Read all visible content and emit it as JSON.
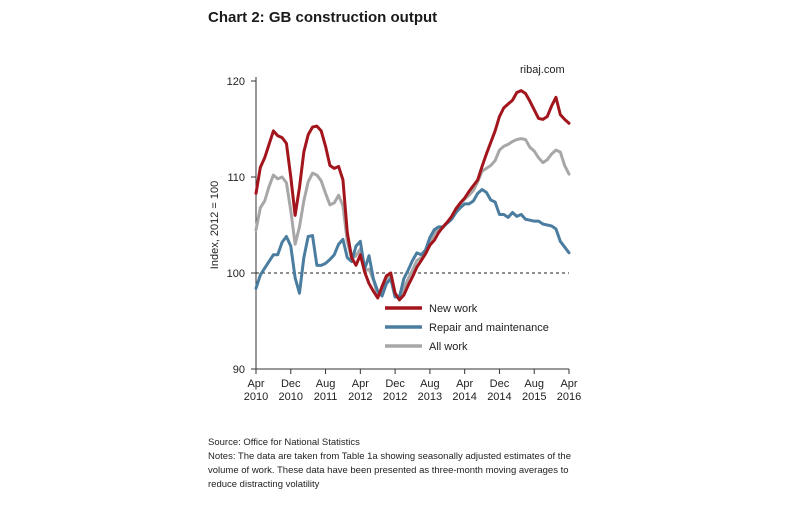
{
  "title": "Chart 2: GB construction output",
  "site_label": "ribaj.com",
  "source": "Source: Office for National Statistics",
  "notes": "Notes: The data are taken from Table 1a showing seasonally adjusted estimates of the volume of work. These data have been presented as three-month moving averages to reduce distracting volatility",
  "chart_data": {
    "type": "line",
    "title": "Chart 2: GB construction output",
    "ylabel": "Index, 2012 = 100",
    "xlabel": "",
    "ylim": [
      90,
      120
    ],
    "yticks": [
      90,
      100,
      110,
      120
    ],
    "reference_line": {
      "y": 100,
      "style": "dashed"
    },
    "grid": false,
    "legend_position": "center-bottom",
    "x_range": [
      "2010-04",
      "2016-04"
    ],
    "x_ticks": [
      {
        "x": "2010-04",
        "line1": "Apr",
        "line2": "2010"
      },
      {
        "x": "2010-12",
        "line1": "Dec",
        "line2": "2010"
      },
      {
        "x": "2011-08",
        "line1": "Aug",
        "line2": "2011"
      },
      {
        "x": "2012-04",
        "line1": "Apr",
        "line2": "2012"
      },
      {
        "x": "2012-12",
        "line1": "Dec",
        "line2": "2012"
      },
      {
        "x": "2013-08",
        "line1": "Aug",
        "line2": "2013"
      },
      {
        "x": "2014-04",
        "line1": "Apr",
        "line2": "2014"
      },
      {
        "x": "2014-12",
        "line1": "Dec",
        "line2": "2014"
      },
      {
        "x": "2015-08",
        "line1": "Aug",
        "line2": "2015"
      },
      {
        "x": "2016-04",
        "line1": "Apr",
        "line2": "2016"
      }
    ],
    "x": [
      "2010-04",
      "2010-05",
      "2010-06",
      "2010-07",
      "2010-08",
      "2010-09",
      "2010-10",
      "2010-11",
      "2010-12",
      "2011-01",
      "2011-02",
      "2011-03",
      "2011-04",
      "2011-05",
      "2011-06",
      "2011-07",
      "2011-08",
      "2011-09",
      "2011-10",
      "2011-11",
      "2011-12",
      "2012-01",
      "2012-02",
      "2012-03",
      "2012-04",
      "2012-05",
      "2012-06",
      "2012-07",
      "2012-08",
      "2012-09",
      "2012-10",
      "2012-11",
      "2012-12",
      "2013-01",
      "2013-02",
      "2013-03",
      "2013-04",
      "2013-05",
      "2013-06",
      "2013-07",
      "2013-08",
      "2013-09",
      "2013-10",
      "2013-11",
      "2013-12",
      "2014-01",
      "2014-02",
      "2014-03",
      "2014-04",
      "2014-05",
      "2014-06",
      "2014-07",
      "2014-08",
      "2014-09",
      "2014-10",
      "2014-11",
      "2014-12",
      "2015-01",
      "2015-02",
      "2015-03",
      "2015-04",
      "2015-05",
      "2015-06",
      "2015-07",
      "2015-08",
      "2015-09",
      "2015-10",
      "2015-11",
      "2015-12",
      "2016-01",
      "2016-02",
      "2016-03",
      "2016-04"
    ],
    "series": [
      {
        "name": "New work",
        "color": "#a3151c",
        "values": [
          108.3,
          111.0,
          112.0,
          113.4,
          114.8,
          114.3,
          114.1,
          113.5,
          110.0,
          106.0,
          108.9,
          112.6,
          114.4,
          115.2,
          115.3,
          114.8,
          113.2,
          111.2,
          110.9,
          111.1,
          109.7,
          104.2,
          101.6,
          100.8,
          101.9,
          100.1,
          98.9,
          98.1,
          97.4,
          98.6,
          99.7,
          100.0,
          97.9,
          97.2,
          97.7,
          98.7,
          99.6,
          100.6,
          101.3,
          102.0,
          102.9,
          103.4,
          104.2,
          104.8,
          105.3,
          105.9,
          106.7,
          107.3,
          107.8,
          108.5,
          109.1,
          109.7,
          111.1,
          112.4,
          113.6,
          114.8,
          116.3,
          117.2,
          117.6,
          118.0,
          118.8,
          119.0,
          118.7,
          117.9,
          117.0,
          116.1,
          116.0,
          116.3,
          117.4,
          118.3,
          116.5,
          116.0,
          115.6
        ]
      },
      {
        "name": "Repair and maintenance",
        "color": "#4a7d9f",
        "values": [
          98.4,
          99.8,
          100.5,
          101.2,
          101.9,
          101.9,
          103.2,
          103.8,
          102.8,
          99.5,
          97.9,
          101.6,
          103.8,
          103.9,
          100.8,
          100.8,
          101.0,
          101.4,
          101.9,
          103.0,
          103.5,
          101.6,
          101.2,
          102.8,
          103.3,
          100.4,
          101.8,
          99.4,
          98.1,
          97.6,
          98.9,
          99.4,
          97.5,
          97.5,
          99.4,
          100.3,
          101.3,
          102.1,
          101.9,
          102.4,
          103.7,
          104.5,
          104.8,
          104.8,
          105.2,
          105.6,
          106.3,
          106.8,
          107.2,
          107.2,
          107.5,
          108.3,
          108.7,
          108.4,
          107.6,
          107.4,
          106.1,
          106.1,
          105.8,
          106.3,
          105.9,
          106.1,
          105.6,
          105.5,
          105.4,
          105.4,
          105.1,
          105.0,
          104.9,
          104.6,
          103.3,
          102.7,
          102.1
        ]
      },
      {
        "name": "All work",
        "color": "#a7a7a7",
        "values": [
          104.5,
          106.8,
          107.5,
          109.0,
          110.2,
          109.8,
          110.0,
          109.4,
          106.5,
          103.0,
          104.8,
          107.5,
          109.5,
          110.4,
          110.2,
          109.6,
          108.3,
          107.1,
          107.3,
          108.1,
          107.0,
          103.3,
          101.5,
          101.8,
          102.5,
          100.2,
          100.4,
          99.3,
          97.7,
          98.0,
          99.4,
          99.8,
          97.8,
          97.4,
          98.4,
          99.4,
          100.3,
          101.3,
          101.6,
          102.2,
          103.2,
          104.1,
          104.6,
          104.7,
          105.3,
          105.8,
          106.7,
          107.2,
          107.7,
          108.1,
          108.6,
          109.5,
          110.6,
          110.9,
          111.2,
          111.7,
          112.8,
          113.2,
          113.4,
          113.7,
          113.9,
          114.0,
          113.9,
          113.1,
          112.7,
          112.0,
          111.5,
          111.8,
          112.4,
          112.8,
          112.6,
          111.2,
          110.3
        ]
      }
    ]
  }
}
